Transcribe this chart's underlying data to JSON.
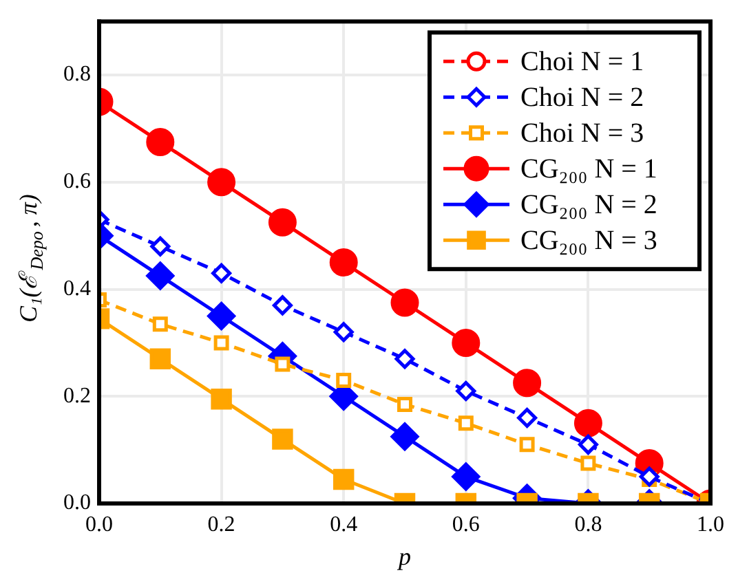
{
  "chart_data": {
    "type": "line",
    "xlabel": "p",
    "ylabel": "C₁(ℰ$_{Depo}$, π)",
    "x": [
      0,
      0.1,
      0.2,
      0.3,
      0.4,
      0.5,
      0.6,
      0.7,
      0.8,
      0.9,
      1.0
    ],
    "xlim": [
      0,
      1
    ],
    "xticks": [
      {
        "value": 0,
        "label": "0.0"
      },
      {
        "value": 0.2,
        "label": "0.2"
      },
      {
        "value": 0.4,
        "label": "0.4"
      },
      {
        "value": 0.6,
        "label": "0.6"
      },
      {
        "value": 0.8,
        "label": "0.8"
      },
      {
        "value": 1,
        "label": "1.0"
      }
    ],
    "ylim": [
      0,
      0.9
    ],
    "yticks": [
      {
        "value": 0,
        "label": "0.0"
      },
      {
        "value": 0.2,
        "label": "0.2"
      },
      {
        "value": 0.4,
        "label": "0.4"
      },
      {
        "value": 0.6,
        "label": "0.6"
      },
      {
        "value": 0.8,
        "label": "0.8"
      }
    ],
    "grid": true,
    "legend": "top right",
    "series": [
      {
        "name": "Choi N = 1",
        "color": "#ff0000",
        "marker": "circle",
        "line_style": "dashed",
        "values": [
          null,
          null,
          null,
          null,
          null,
          null,
          null,
          null,
          null,
          null,
          null
        ]
      },
      {
        "name": "Choi N = 2",
        "color": "#0000ff",
        "marker": "diamond",
        "line_style": "dashed",
        "values": [
          0.53,
          0.48,
          0.43,
          0.37,
          0.32,
          0.27,
          0.21,
          0.16,
          0.11,
          0.05,
          0
        ]
      },
      {
        "name": "Choi N = 3",
        "color": "#ffa500",
        "marker": "square",
        "line_style": "dashed",
        "values": [
          0.38,
          0.335,
          0.3,
          0.26,
          0.23,
          0.185,
          0.15,
          0.11,
          0.075,
          0.045,
          0
        ]
      },
      {
        "name": "CG₂₀₀ N = 1",
        "color": "#ff0000",
        "marker": "circle",
        "line_style": "solid",
        "values": [
          0.75,
          0.675,
          0.6,
          0.525,
          0.45,
          0.375,
          0.3,
          0.225,
          0.15,
          0.075,
          0
        ]
      },
      {
        "name": "CG₂₀₀ N = 2",
        "color": "#0000ff",
        "marker": "diamond",
        "line_style": "solid",
        "values": [
          0.5,
          0.425,
          0.35,
          0.275,
          0.2,
          0.125,
          0.05,
          0.01,
          0,
          0,
          0
        ]
      },
      {
        "name": "CG₂₀₀ N = 3",
        "color": "#ffa500",
        "marker": "square",
        "line_style": "solid",
        "values": [
          0.345,
          0.27,
          0.195,
          0.12,
          0.045,
          0,
          0,
          0,
          0,
          0,
          0
        ]
      }
    ]
  }
}
